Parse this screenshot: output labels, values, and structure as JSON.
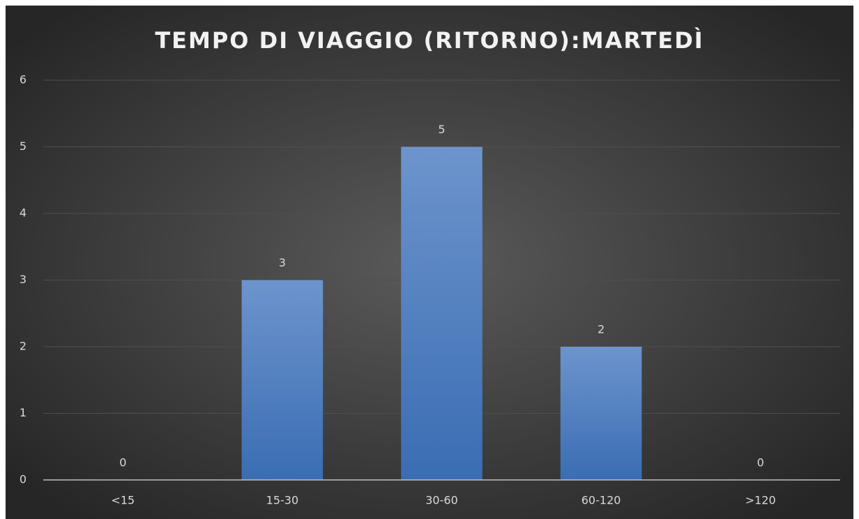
{
  "chart_data": {
    "type": "bar",
    "title": "TEMPO DI VIAGGIO (RITORNO):MARTEDÌ",
    "categories": [
      "<15",
      "15-30",
      "30-60",
      "60-120",
      ">120"
    ],
    "values": [
      0,
      3,
      5,
      2,
      0
    ],
    "color": "#4a7cc0",
    "ylim": [
      0,
      6
    ],
    "yticks": [
      0,
      1,
      2,
      3,
      4,
      5,
      6
    ],
    "grid": true,
    "data_labels": true
  }
}
